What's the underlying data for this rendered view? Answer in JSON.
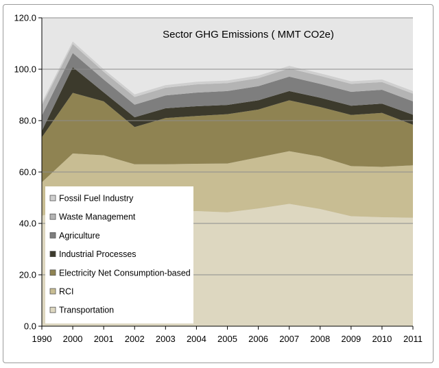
{
  "chart_data": {
    "type": "area",
    "stacked": true,
    "title": "Sector  GHG Emissions ( MMT CO2e)",
    "categories": [
      "1990",
      "2000",
      "2001",
      "2002",
      "2003",
      "2004",
      "2005",
      "2006",
      "2007",
      "2008",
      "2009",
      "2010",
      "2011"
    ],
    "ylim": [
      0,
      120
    ],
    "yticks": [
      "0.0",
      "20.0",
      "40.0",
      "60.0",
      "80.0",
      "100.0",
      "120.0"
    ],
    "grid": "horizontal",
    "plot_background": "#e6e6e6",
    "legend_position": "lower-left inside plot",
    "series": [
      {
        "name": "Transportation",
        "color": "#ddd7c0",
        "values": [
          43.0,
          46.0,
          45.5,
          44.0,
          44.5,
          44.8,
          44.3,
          45.8,
          47.6,
          45.6,
          42.8,
          42.4,
          42.2
        ]
      },
      {
        "name": "RCI",
        "color": "#c8bd93",
        "values": [
          13.0,
          21.2,
          21.0,
          19.0,
          18.5,
          18.4,
          19.0,
          19.9,
          20.5,
          20.4,
          19.5,
          19.6,
          20.4
        ]
      },
      {
        "name": "Electricity Net Consumption-based",
        "color": "#8f8352",
        "values": [
          17.5,
          23.6,
          21.0,
          14.5,
          18.0,
          18.6,
          19.2,
          18.6,
          19.8,
          19.3,
          19.9,
          21.0,
          15.8
        ]
      },
      {
        "name": "Industrial Processes",
        "color": "#3c3a2c",
        "values": [
          2.5,
          10.0,
          3.5,
          3.8,
          3.8,
          3.8,
          3.6,
          3.6,
          3.6,
          3.6,
          3.6,
          3.6,
          3.9
        ]
      },
      {
        "name": "Agriculture",
        "color": "#7e7e7e",
        "values": [
          6.0,
          5.5,
          5.0,
          4.9,
          5.0,
          5.3,
          5.4,
          5.5,
          5.6,
          5.4,
          5.4,
          5.4,
          5.2
        ]
      },
      {
        "name": "Waste Management",
        "color": "#b4b4b4",
        "values": [
          4.0,
          3.5,
          3.0,
          3.0,
          3.0,
          3.2,
          3.1,
          3.1,
          3.2,
          3.1,
          3.1,
          3.0,
          3.0
        ]
      },
      {
        "name": "Fossil Fuel Industry",
        "color": "#cfcfcf",
        "values": [
          1.0,
          1.0,
          1.0,
          1.0,
          1.0,
          1.0,
          1.0,
          1.0,
          1.0,
          1.0,
          1.0,
          1.0,
          1.0
        ]
      }
    ],
    "legend_order": [
      "Fossil Fuel Industry",
      "Waste Management",
      "Agriculture",
      "Industrial Processes",
      "Electricity Net Consumption-based",
      "RCI",
      "Transportation"
    ]
  }
}
